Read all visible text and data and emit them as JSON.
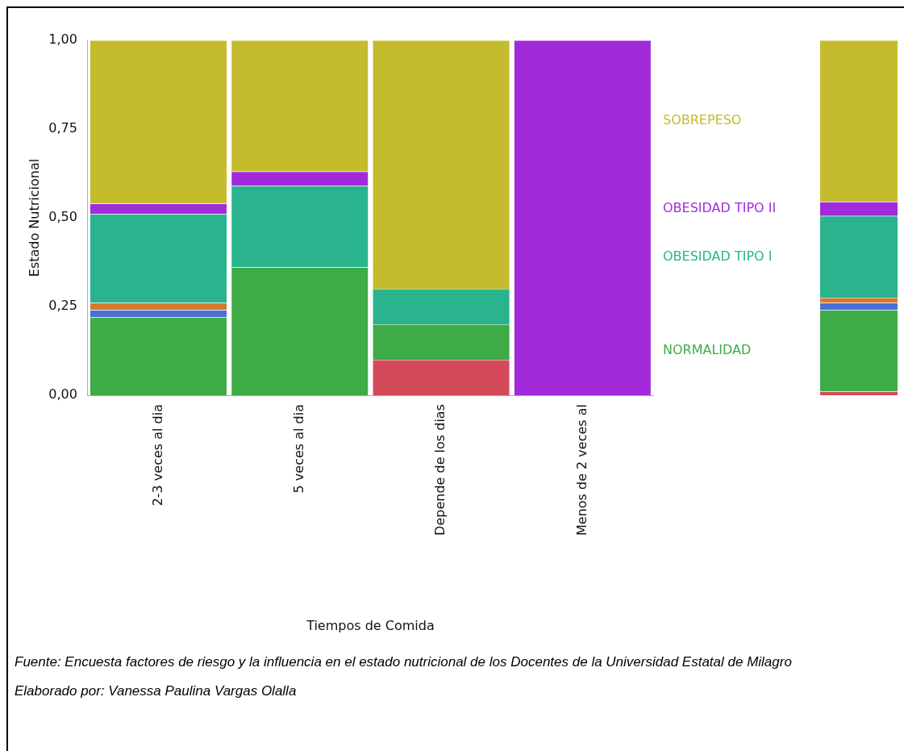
{
  "chart_data": [
    {
      "type": "bar",
      "stacked": true,
      "xlabel": "Tiempos de Comida",
      "ylabel": "Estado Nutricional",
      "categories": [
        "2-3 veces al dia",
        "5 veces al dia",
        "Depende de los dias",
        "Menos de 2 veces al"
      ],
      "ylim": [
        0,
        1
      ],
      "yticks": [
        {
          "value": 0,
          "label": "0,00"
        },
        {
          "value": 0.25,
          "label": "0,25"
        },
        {
          "value": 0.5,
          "label": "0,50"
        },
        {
          "value": 0.75,
          "label": "0,75"
        },
        {
          "value": 1,
          "label": "1,00"
        }
      ],
      "grid": false,
      "legend": false,
      "series": [
        {
          "color": "#d44a5a",
          "values": [
            0,
            0,
            0.1,
            0
          ]
        },
        {
          "name": "NORMALIDAD",
          "color": "#3dac46",
          "values": [
            0.22,
            0.36,
            0.1,
            0
          ]
        },
        {
          "color": "#4a6fd8",
          "values": [
            0.02,
            0,
            0,
            0
          ]
        },
        {
          "color": "#d37b30",
          "values": [
            0.02,
            0,
            0,
            0
          ]
        },
        {
          "name": "OBESIDAD TIPO I",
          "color": "#29b48e",
          "values": [
            0.25,
            0.23,
            0.1,
            0
          ]
        },
        {
          "name": "OBESIDAD TIPO II",
          "color": "#a12bdb",
          "values": [
            0.03,
            0.04,
            0,
            1
          ]
        },
        {
          "name": "SOBREPESO",
          "color": "#c4bc2c",
          "values": [
            0.46,
            0.37,
            0.7,
            0
          ]
        }
      ],
      "annotations": [
        "Fuente: Encuesta factores de riesgo y la influencia en el estado nutricional de los Docentes de la Universidad Estatal de Milagro",
        "Elaborado por: Vanessa Paulina Vargas Olalla"
      ]
    },
    {
      "type": "bar",
      "stacked": true,
      "categories": [
        null
      ],
      "ylim": [
        0,
        1
      ],
      "tick_labels": false,
      "grid": false,
      "legend": false,
      "series": [
        {
          "color": "#d44a5a",
          "values": [
            0.01
          ]
        },
        {
          "color": "#3dac46",
          "values": [
            0.23
          ]
        },
        {
          "color": "#4a6fd8",
          "values": [
            0.02
          ]
        },
        {
          "color": "#d37b30",
          "values": [
            0.015
          ]
        },
        {
          "color": "#29b48e",
          "values": [
            0.23
          ]
        },
        {
          "color": "#a12bdb",
          "values": [
            0.04
          ]
        },
        {
          "color": "#c4bc2c",
          "values": [
            0.455
          ]
        }
      ]
    }
  ]
}
